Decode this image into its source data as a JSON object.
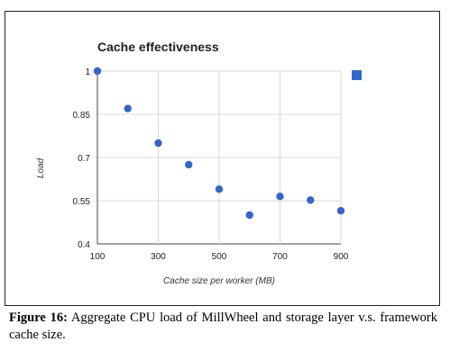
{
  "figure": {
    "label": "Figure 16:",
    "text": "Aggregate CPU load of MillWheel and storage layer v.s. framework cache size."
  },
  "colors": {
    "marker": "#3366cc",
    "grid": "#d8d8d8"
  },
  "chart_data": {
    "type": "scatter",
    "title": "Cache effectiveness",
    "xlabel": "Cache size per worker (MB)",
    "ylabel": "Load",
    "x": [
      100,
      200,
      300,
      400,
      500,
      600,
      700,
      800,
      900
    ],
    "y": [
      1.0,
      0.87,
      0.75,
      0.675,
      0.59,
      0.5,
      0.565,
      0.552,
      0.515
    ],
    "xlim": [
      100,
      900
    ],
    "ylim": [
      0.4,
      1.0
    ],
    "xticks": [
      100,
      300,
      500,
      700,
      900
    ],
    "xtick_labels": [
      "100",
      "300",
      "500",
      "700",
      "900"
    ],
    "yticks": [
      0.4,
      0.55,
      0.7,
      0.85,
      1.0
    ],
    "ytick_labels": [
      "0.4",
      "0.55",
      "0.7",
      "0.85",
      "1"
    ],
    "grid": true,
    "legend": {
      "placement": "right",
      "marker": "square"
    }
  }
}
